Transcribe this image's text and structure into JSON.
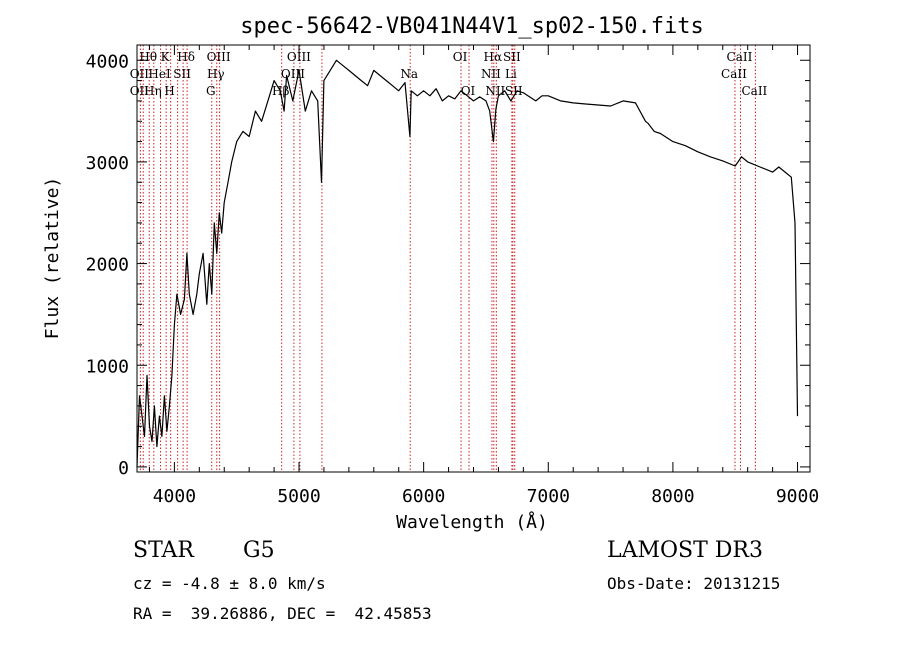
{
  "chart_data": {
    "type": "line",
    "title": "spec-56642-VB041N44V1_sp02-150.fits",
    "xlabel": "Wavelength (Å)",
    "ylabel": "Flux (relative)",
    "xlim": [
      3700,
      9100
    ],
    "ylim": [
      -50,
      4150
    ],
    "x_ticks": [
      4000,
      5000,
      6000,
      7000,
      8000,
      9000
    ],
    "y_ticks": [
      0,
      1000,
      2000,
      3000,
      4000
    ],
    "x_minor_step": 200,
    "y_minor_step": 200,
    "grid": false,
    "series": [
      {
        "name": "flux",
        "x": [
          3700,
          3720,
          3740,
          3760,
          3780,
          3800,
          3820,
          3840,
          3860,
          3880,
          3900,
          3920,
          3940,
          3960,
          3980,
          4000,
          4020,
          4050,
          4080,
          4100,
          4120,
          4150,
          4180,
          4200,
          4230,
          4260,
          4280,
          4300,
          4320,
          4340,
          4360,
          4380,
          4400,
          4430,
          4460,
          4500,
          4550,
          4600,
          4650,
          4700,
          4750,
          4800,
          4850,
          4880,
          4900,
          4950,
          5000,
          5050,
          5100,
          5150,
          5180,
          5200,
          5250,
          5300,
          5350,
          5400,
          5450,
          5500,
          5550,
          5600,
          5650,
          5700,
          5750,
          5800,
          5850,
          5890,
          5900,
          5950,
          6000,
          6050,
          6100,
          6150,
          6200,
          6250,
          6300,
          6350,
          6400,
          6450,
          6500,
          6530,
          6560,
          6580,
          6600,
          6650,
          6700,
          6750,
          6800,
          6850,
          6900,
          6950,
          7000,
          7100,
          7200,
          7300,
          7400,
          7500,
          7600,
          7700,
          7780,
          7800,
          7850,
          7900,
          8000,
          8100,
          8200,
          8300,
          8400,
          8500,
          8550,
          8600,
          8700,
          8800,
          8850,
          8900,
          8950,
          8980,
          9000
        ],
        "y": [
          0,
          700,
          500,
          300,
          900,
          400,
          250,
          600,
          200,
          500,
          300,
          700,
          350,
          600,
          900,
          1400,
          1700,
          1500,
          1650,
          2100,
          1700,
          1500,
          1700,
          1900,
          2100,
          1600,
          2000,
          1700,
          2400,
          2100,
          2500,
          2300,
          2600,
          2800,
          3000,
          3200,
          3300,
          3250,
          3500,
          3400,
          3600,
          3800,
          3700,
          3500,
          3850,
          3600,
          3900,
          3500,
          3700,
          3600,
          2800,
          3800,
          3900,
          4000,
          3950,
          3900,
          3850,
          3800,
          3750,
          3900,
          3850,
          3800,
          3750,
          3700,
          3780,
          3250,
          3700,
          3650,
          3700,
          3650,
          3720,
          3600,
          3650,
          3620,
          3700,
          3650,
          3600,
          3640,
          3600,
          3500,
          3200,
          3520,
          3650,
          3700,
          3600,
          3700,
          3680,
          3640,
          3600,
          3650,
          3650,
          3600,
          3580,
          3570,
          3560,
          3550,
          3600,
          3580,
          3400,
          3380,
          3300,
          3280,
          3200,
          3160,
          3100,
          3050,
          3010,
          2960,
          3050,
          3000,
          2950,
          2900,
          2950,
          2900,
          2850,
          2400,
          500
        ]
      }
    ],
    "lines": {
      "positions": [
        3727,
        3750,
        3798,
        3835,
        3889,
        3934,
        3970,
        4026,
        4070,
        4102,
        4300,
        4340,
        4363,
        4861,
        4959,
        5007,
        5184,
        5892,
        6300,
        6364,
        6548,
        6563,
        6583,
        6708,
        6716,
        6731,
        8498,
        8542,
        8662
      ],
      "labels": [
        {
          "text": "Hθ",
          "x": 3798,
          "row": 0
        },
        {
          "text": "K",
          "x": 3934,
          "row": 0
        },
        {
          "text": "Hδ",
          "x": 4102,
          "row": 0
        },
        {
          "text": "OII",
          "x": 3727,
          "row": 1
        },
        {
          "text": "HeI",
          "x": 3889,
          "row": 1
        },
        {
          "text": "SII",
          "x": 4070,
          "row": 1
        },
        {
          "text": "OII",
          "x": 3727,
          "row": 2
        },
        {
          "text": "Hη",
          "x": 3835,
          "row": 2
        },
        {
          "text": "H",
          "x": 3970,
          "row": 2
        },
        {
          "text": "OIII",
          "x": 4363,
          "row": 0
        },
        {
          "text": "Hγ",
          "x": 4340,
          "row": 1
        },
        {
          "text": "G",
          "x": 4300,
          "row": 2
        },
        {
          "text": "OIII",
          "x": 5007,
          "row": 0
        },
        {
          "text": "OIII",
          "x": 4959,
          "row": 1
        },
        {
          "text": "Hβ",
          "x": 4861,
          "row": 2
        },
        {
          "text": "Na",
          "x": 5892,
          "row": 1
        },
        {
          "text": "OI",
          "x": 6300,
          "row": 0
        },
        {
          "text": "OI",
          "x": 6364,
          "row": 2
        },
        {
          "text": "Hα",
          "x": 6563,
          "row": 0
        },
        {
          "text": "SII",
          "x": 6716,
          "row": 0
        },
        {
          "text": "NII",
          "x": 6548,
          "row": 1
        },
        {
          "text": "Li",
          "x": 6708,
          "row": 1
        },
        {
          "text": "NII",
          "x": 6583,
          "row": 2
        },
        {
          "text": "SII",
          "x": 6731,
          "row": 2
        },
        {
          "text": "CaII",
          "x": 8542,
          "row": 0
        },
        {
          "text": "CaII",
          "x": 8498,
          "row": 1
        },
        {
          "text": "CaII",
          "x": 8662,
          "row": 2
        }
      ]
    }
  },
  "info": {
    "object_class": "STAR",
    "subclass": "G5",
    "survey": "LAMOST DR3",
    "cz": "cz = -4.8 ± 8.0 km/s",
    "obs_date": "Obs-Date: 20131215",
    "coords": "RA =  39.26886, DEC =  42.45853"
  }
}
